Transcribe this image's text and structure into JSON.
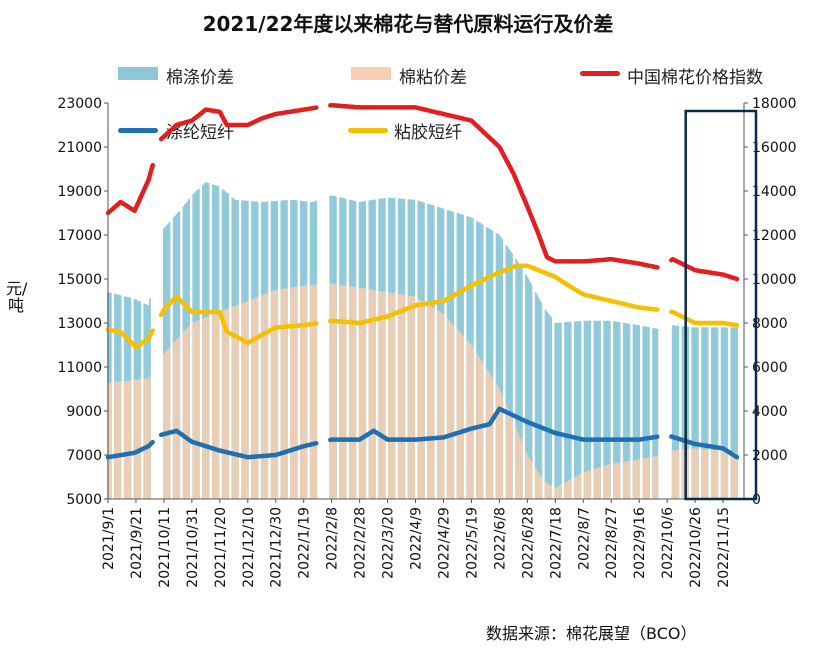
{
  "chart_data": {
    "type": "bar+line",
    "title": "2021/22年度以来棉花与替代原料运行及价差",
    "ylabel": "元/吨",
    "source": "数据来源：棉花展望（BCO）",
    "left_axis": {
      "ticks": [
        5000,
        7000,
        9000,
        11000,
        13000,
        15000,
        17000,
        19000,
        21000,
        23000
      ],
      "ylim": [
        5000,
        23000
      ]
    },
    "right_axis": {
      "ticks": [
        0,
        2000,
        4000,
        6000,
        8000,
        10000,
        12000,
        14000,
        16000,
        18000
      ],
      "ylim": [
        0,
        18000
      ]
    },
    "x_tick_labels": [
      "2021/9/1",
      "2021/9/21",
      "2021/10/11",
      "2021/10/31",
      "2021/11/20",
      "2021/12/10",
      "2021/12/30",
      "2022/1/19",
      "2022/2/8",
      "2022/2/28",
      "2022/3/20",
      "2022/4/9",
      "2022/4/29",
      "2022/5/19",
      "2022/6/8",
      "2022/6/28",
      "2022/7/18",
      "2022/8/7",
      "2022/8/27",
      "2022/9/16",
      "2022/10/6",
      "2022/10/26",
      "2022/11/15"
    ],
    "legend_placement": "top",
    "series": [
      {
        "name": "棉涤价差",
        "kind": "bar",
        "axis": "right",
        "color": "#8cc8d8",
        "points": [
          [
            "2021/9/1",
            9400
          ],
          [
            "2021/9/20",
            9100
          ],
          [
            "2021/9/30",
            8800
          ],
          [
            "2021/10/11",
            12300
          ],
          [
            "2021/10/25",
            13300
          ],
          [
            "2021/10/31",
            13800
          ],
          [
            "2021/11/10",
            14400
          ],
          [
            "2021/11/20",
            14200
          ],
          [
            "2021/12/1",
            13600
          ],
          [
            "2021/12/20",
            13500
          ],
          [
            "2022/1/10",
            13600
          ],
          [
            "2022/1/25",
            13500
          ],
          [
            "2022/2/8",
            13800
          ],
          [
            "2022/2/28",
            13500
          ],
          [
            "2022/3/20",
            13700
          ],
          [
            "2022/4/9",
            13600
          ],
          [
            "2022/4/29",
            13200
          ],
          [
            "2022/5/19",
            12800
          ],
          [
            "2022/6/8",
            12000
          ],
          [
            "2022/6/20",
            10900
          ],
          [
            "2022/6/28",
            10100
          ],
          [
            "2022/7/10",
            8700
          ],
          [
            "2022/7/18",
            8000
          ],
          [
            "2022/8/7",
            8100
          ],
          [
            "2022/8/27",
            8100
          ],
          [
            "2022/9/16",
            7900
          ],
          [
            "2022/10/2",
            7700
          ],
          [
            "2022/10/10",
            7900
          ],
          [
            "2022/10/26",
            7800
          ],
          [
            "2022/11/15",
            7800
          ],
          [
            "2022/11/25",
            7800
          ]
        ]
      },
      {
        "name": "棉粘价差",
        "kind": "bar",
        "axis": "left",
        "color": "#f4cfb0",
        "points": [
          [
            "2021/9/1",
            10300
          ],
          [
            "2021/9/20",
            10400
          ],
          [
            "2021/9/30",
            10500
          ],
          [
            "2021/10/11",
            11600
          ],
          [
            "2021/10/31",
            13000
          ],
          [
            "2021/11/20",
            13500
          ],
          [
            "2021/12/10",
            14000
          ],
          [
            "2021/12/30",
            14500
          ],
          [
            "2022/1/19",
            14700
          ],
          [
            "2022/2/8",
            14800
          ],
          [
            "2022/2/28",
            14600
          ],
          [
            "2022/3/20",
            14400
          ],
          [
            "2022/4/9",
            14200
          ],
          [
            "2022/4/29",
            13400
          ],
          [
            "2022/5/19",
            12000
          ],
          [
            "2022/6/8",
            10000
          ],
          [
            "2022/6/28",
            7000
          ],
          [
            "2022/7/10",
            5800
          ],
          [
            "2022/7/18",
            5500
          ],
          [
            "2022/8/7",
            6200
          ],
          [
            "2022/8/27",
            6600
          ],
          [
            "2022/9/16",
            6800
          ],
          [
            "2022/10/2",
            7000
          ],
          [
            "2022/10/10",
            7200
          ],
          [
            "2022/10/26",
            7300
          ],
          [
            "2022/11/15",
            7200
          ],
          [
            "2022/11/25",
            7100
          ]
        ]
      },
      {
        "name": "中国棉花价格指数",
        "kind": "line",
        "axis": "left",
        "color": "#e41e1e",
        "points": [
          [
            "2021/9/1",
            18000
          ],
          [
            "2021/9/10",
            18500
          ],
          [
            "2021/9/20",
            18100
          ],
          [
            "2021/9/30",
            19500
          ],
          [
            "2021/10/8",
            21300
          ],
          [
            "2021/10/20",
            22000
          ],
          [
            "2021/10/31",
            22200
          ],
          [
            "2021/11/10",
            22700
          ],
          [
            "2021/11/20",
            22600
          ],
          [
            "2021/11/25",
            22000
          ],
          [
            "2021/12/10",
            22000
          ],
          [
            "2021/12/20",
            22300
          ],
          [
            "2021/12/30",
            22500
          ],
          [
            "2022/1/19",
            22700
          ],
          [
            "2022/2/8",
            22900
          ],
          [
            "2022/2/28",
            22800
          ],
          [
            "2022/3/20",
            22800
          ],
          [
            "2022/4/9",
            22800
          ],
          [
            "2022/4/29",
            22500
          ],
          [
            "2022/5/19",
            22200
          ],
          [
            "2022/6/8",
            21000
          ],
          [
            "2022/6/18",
            19800
          ],
          [
            "2022/6/28",
            18300
          ],
          [
            "2022/7/5",
            17200
          ],
          [
            "2022/7/12",
            16000
          ],
          [
            "2022/7/18",
            15800
          ],
          [
            "2022/8/7",
            15800
          ],
          [
            "2022/8/27",
            15900
          ],
          [
            "2022/9/16",
            15700
          ],
          [
            "2022/10/1",
            15500
          ],
          [
            "2022/10/10",
            15900
          ],
          [
            "2022/10/26",
            15400
          ],
          [
            "2022/11/15",
            15200
          ],
          [
            "2022/11/25",
            15000
          ]
        ]
      },
      {
        "name": "涤纶短纤",
        "kind": "line",
        "axis": "left",
        "color": "#1f6fb3",
        "points": [
          [
            "2021/9/1",
            6900
          ],
          [
            "2021/9/20",
            7100
          ],
          [
            "2021/9/30",
            7400
          ],
          [
            "2021/10/8",
            7900
          ],
          [
            "2021/10/20",
            8100
          ],
          [
            "2021/10/31",
            7600
          ],
          [
            "2021/11/20",
            7200
          ],
          [
            "2021/12/10",
            6900
          ],
          [
            "2021/12/30",
            7000
          ],
          [
            "2022/1/19",
            7400
          ],
          [
            "2022/2/8",
            7700
          ],
          [
            "2022/2/28",
            7700
          ],
          [
            "2022/3/10",
            8100
          ],
          [
            "2022/3/20",
            7700
          ],
          [
            "2022/4/9",
            7700
          ],
          [
            "2022/4/29",
            7800
          ],
          [
            "2022/5/19",
            8200
          ],
          [
            "2022/6/1",
            8400
          ],
          [
            "2022/6/8",
            9100
          ],
          [
            "2022/6/28",
            8500
          ],
          [
            "2022/7/18",
            8000
          ],
          [
            "2022/8/7",
            7700
          ],
          [
            "2022/8/27",
            7700
          ],
          [
            "2022/9/16",
            7700
          ],
          [
            "2022/10/6",
            7900
          ],
          [
            "2022/10/26",
            7500
          ],
          [
            "2022/11/15",
            7300
          ],
          [
            "2022/11/25",
            6900
          ]
        ]
      },
      {
        "name": "粘胶短纤",
        "kind": "line",
        "axis": "left",
        "color": "#f5c000",
        "points": [
          [
            "2021/9/1",
            12700
          ],
          [
            "2021/9/10",
            12600
          ],
          [
            "2021/9/21",
            11900
          ],
          [
            "2021/9/30",
            12300
          ],
          [
            "2021/10/11",
            13600
          ],
          [
            "2021/10/20",
            14200
          ],
          [
            "2021/10/31",
            13500
          ],
          [
            "2021/11/20",
            13500
          ],
          [
            "2021/11/25",
            12600
          ],
          [
            "2021/12/10",
            12100
          ],
          [
            "2021/12/30",
            12800
          ],
          [
            "2022/1/19",
            12900
          ],
          [
            "2022/2/8",
            13100
          ],
          [
            "2022/2/28",
            13000
          ],
          [
            "2022/3/20",
            13300
          ],
          [
            "2022/4/9",
            13800
          ],
          [
            "2022/4/29",
            14000
          ],
          [
            "2022/5/19",
            14700
          ],
          [
            "2022/6/8",
            15300
          ],
          [
            "2022/6/20",
            15600
          ],
          [
            "2022/6/28",
            15600
          ],
          [
            "2022/7/18",
            15100
          ],
          [
            "2022/7/25",
            14800
          ],
          [
            "2022/8/7",
            14300
          ],
          [
            "2022/8/27",
            14000
          ],
          [
            "2022/9/16",
            13700
          ],
          [
            "2022/9/30",
            13600
          ],
          [
            "2022/10/10",
            13500
          ],
          [
            "2022/10/26",
            13000
          ],
          [
            "2022/11/15",
            13000
          ],
          [
            "2022/11/25",
            12900
          ]
        ]
      }
    ],
    "highlight_box": {
      "x_start": "2022/10/25",
      "x_end": "2022/11/30",
      "color": "#0b2a4a"
    }
  }
}
